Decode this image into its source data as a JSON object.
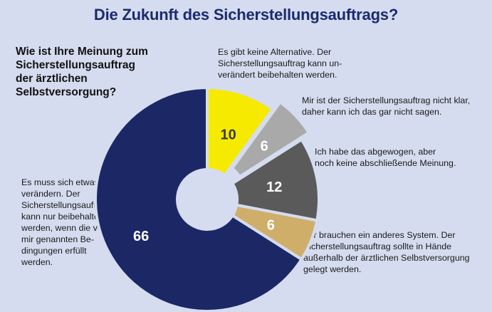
{
  "title": "Die Zukunft des Sicherstellungsauftrags?",
  "question": "Wie ist Ihre Meinung zum Sicherstellungs­auftrag der ärztlichen Selbstversorgung?",
  "chart_data": {
    "type": "pie",
    "title": "Die Zukunft des Sicherstellungsauftrags?",
    "slices": [
      {
        "value": 10,
        "label": "10",
        "color": "#f6ea00",
        "description": "Es gibt keine Alternative. Der Sicherstellungsauftrag kann unverändert beibehalten werden."
      },
      {
        "value": 6,
        "label": "6",
        "color": "#a9a9a9",
        "description": "Mir ist der Sicherstellungsauftrag nicht klar, daher kann ich das gar nicht sagen."
      },
      {
        "value": 12,
        "label": "12",
        "color": "#5a5a5a",
        "description": "Ich habe das abgewogen, aber noch keine abschließende Meinung."
      },
      {
        "value": 6,
        "label": "6",
        "color": "#cfae6a",
        "description": "Wir brauchen ein anderes System. Der Sicherstellungsauftrag sollte in Hände außerhalb der ärztlichen Selbstversorgung gelegt werden."
      },
      {
        "value": 66,
        "label": "66",
        "color": "#1c2766",
        "description": "Es muss sich etwas verändern. Der Sicherstellungsauftrag kann nur beibehalten werden, wenn die von mir genannten Bedingungen erfüllt werden."
      }
    ]
  },
  "notes": {
    "alt1": "Es gibt keine Alternative. Der Sicherstellungsauftrag kann un­verändert beibehalten werden.",
    "alt2": "Mir ist der Sicherstellungsauftrag nicht klar, daher kann ich das gar nicht sagen.",
    "alt3": "Ich habe das abgewogen, aber noch keine abschließende Meinung.",
    "alt4": "Wir brauchen ein anderes System. Der Sicherstellungsauftrag sollte in Hände außerhalb der ärztlichen Selbstversor­gung gelegt werden.",
    "alt5": "Es muss sich etwas verändern. Der Sicherstellungs­auftrag kann nur beibehalten wer­den, wenn die von mir genannten Be­dingungen erfüllt werden."
  }
}
